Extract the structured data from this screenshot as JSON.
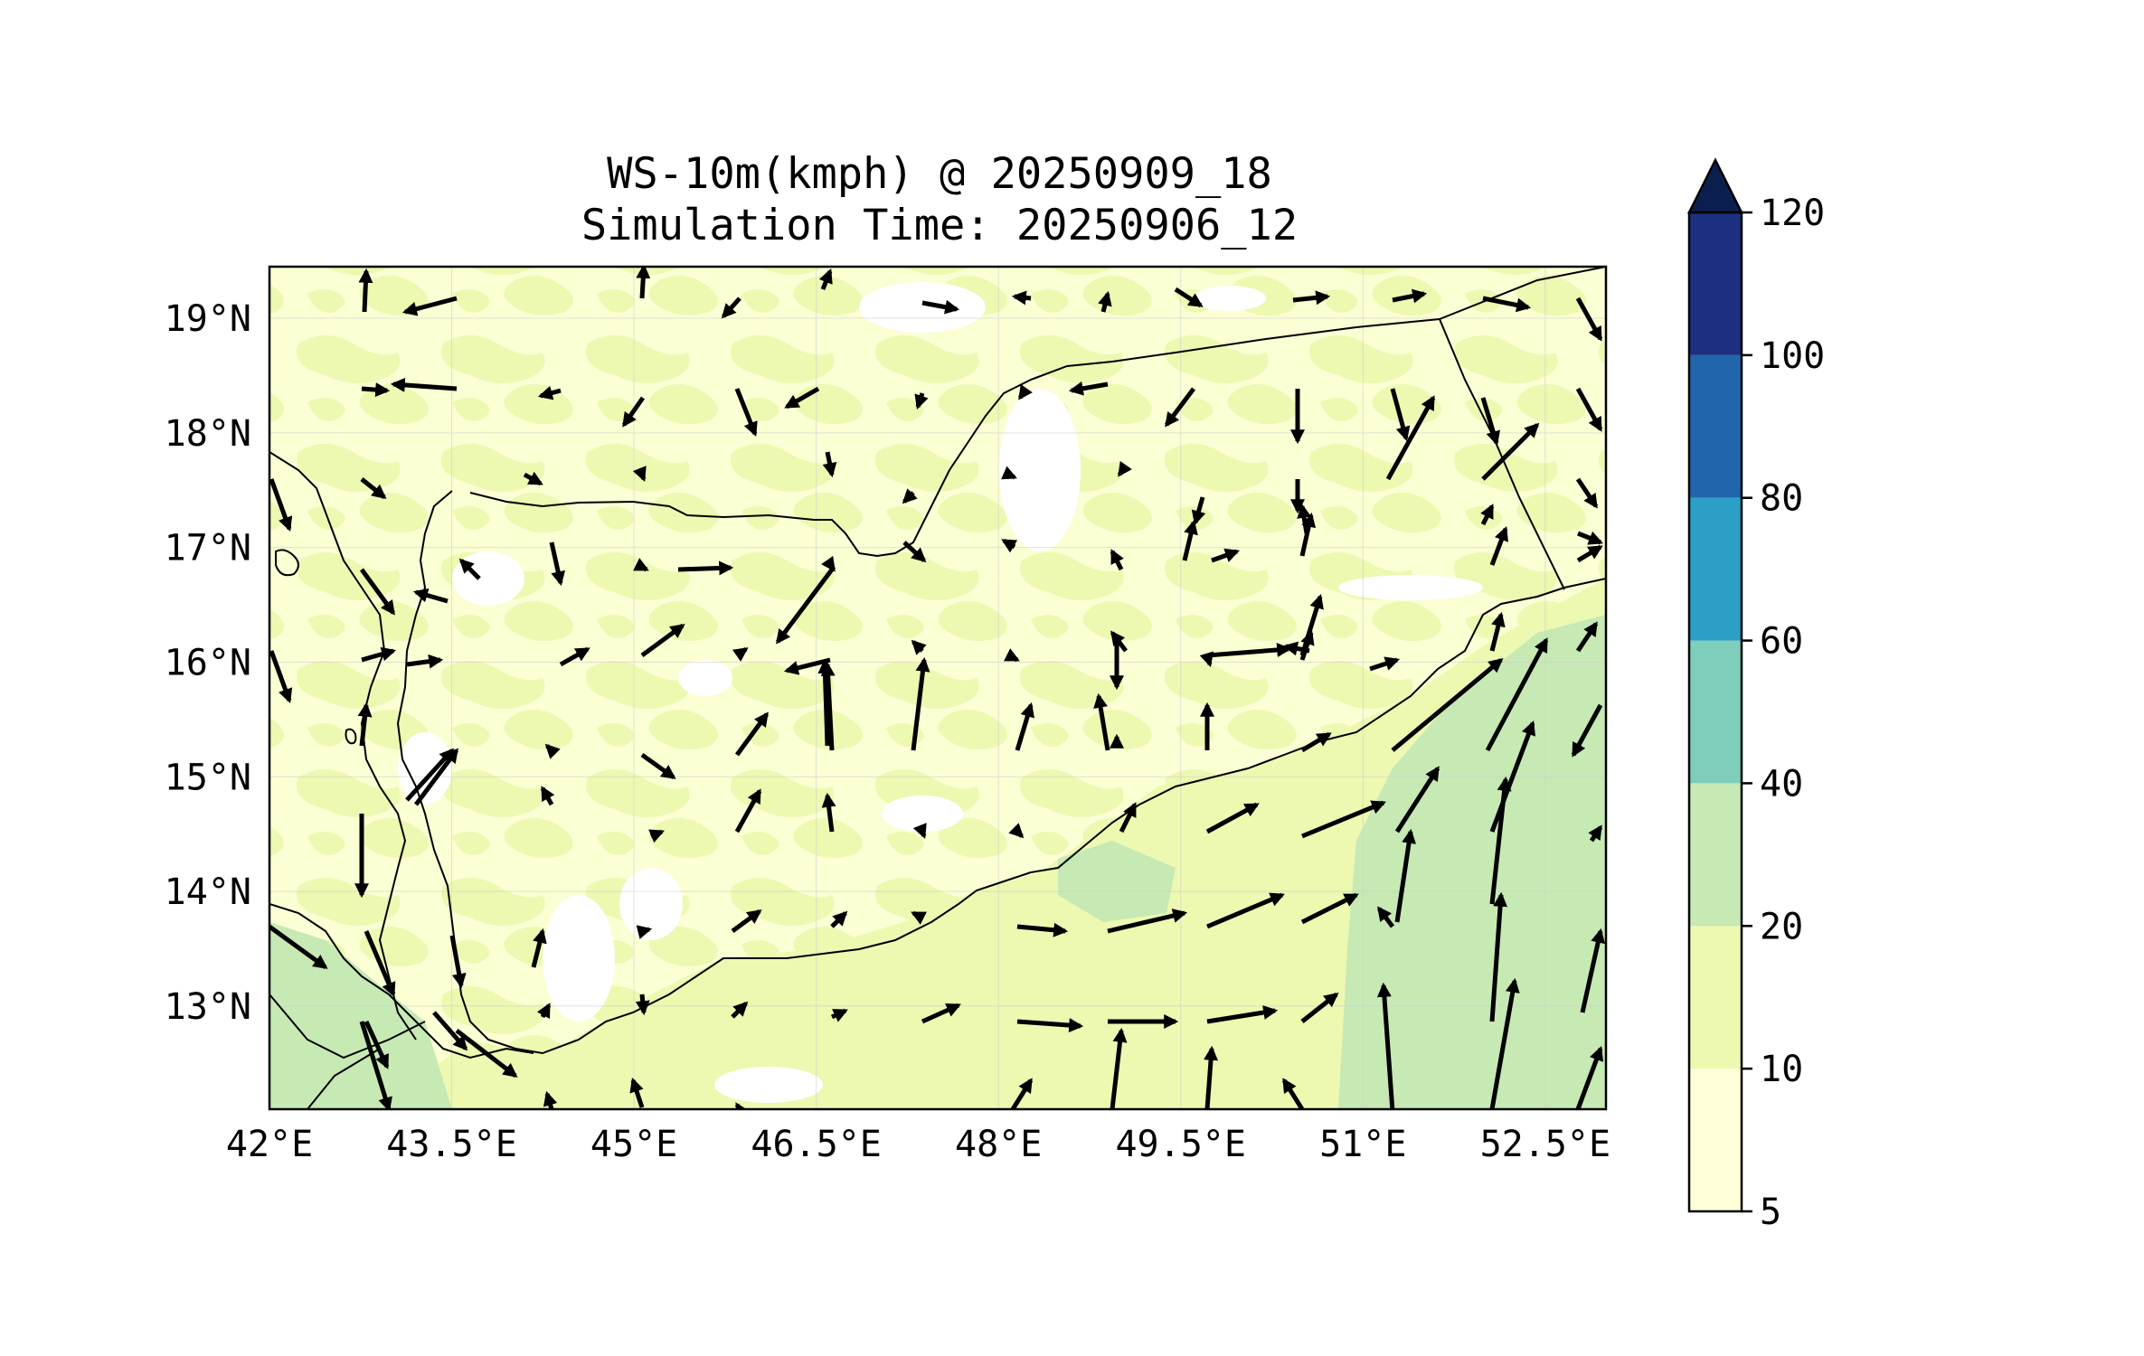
{
  "title": {
    "line1": "WS-10m(kmph) @ 20250909_18",
    "line2": "Simulation Time: 20250906_12"
  },
  "map": {
    "lon_range": [
      42,
      53
    ],
    "lat_range": [
      12.1,
      19.45
    ],
    "lon_ticks": [
      {
        "value": 42.0,
        "label": "42°E"
      },
      {
        "value": 43.5,
        "label": "43.5°E"
      },
      {
        "value": 45.0,
        "label": "45°E"
      },
      {
        "value": 46.5,
        "label": "46.5°E"
      },
      {
        "value": 48.0,
        "label": "48°E"
      },
      {
        "value": 49.5,
        "label": "49.5°E"
      },
      {
        "value": 51.0,
        "label": "51°E"
      },
      {
        "value": 52.5,
        "label": "52.5°E"
      }
    ],
    "lat_ticks": [
      {
        "value": 19,
        "label": "19°N"
      },
      {
        "value": 18,
        "label": "18°N"
      },
      {
        "value": 17,
        "label": "17°N"
      },
      {
        "value": 16,
        "label": "16°N"
      },
      {
        "value": 15,
        "label": "15°N"
      },
      {
        "value": 14,
        "label": "14°N"
      },
      {
        "value": 13,
        "label": "13°N"
      }
    ],
    "colors": {
      "c5_10": "#ffffd9",
      "c10_20": "#edf8b1",
      "c20_40": "#c7e9b4",
      "c40_60": "#7fcdbb",
      "c60_80": "#2c9fc6",
      "c80_100": "#2166ac",
      "c100_120": "#1d2f80",
      "over": "#0b1f4f",
      "arrow": "#000000",
      "border": "#000000"
    }
  },
  "colorbar": {
    "levels": [
      5,
      10,
      20,
      40,
      60,
      80,
      100,
      120
    ],
    "labels": [
      "5",
      "10",
      "20",
      "40",
      "60",
      "80",
      "100",
      "120"
    ],
    "colors": [
      "#ffffd9",
      "#edf8b1",
      "#c7e9b4",
      "#7fcdbb",
      "#2c9fc6",
      "#2166ac",
      "#1d2f80"
    ],
    "extend_color": "#0b1f4f"
  }
}
